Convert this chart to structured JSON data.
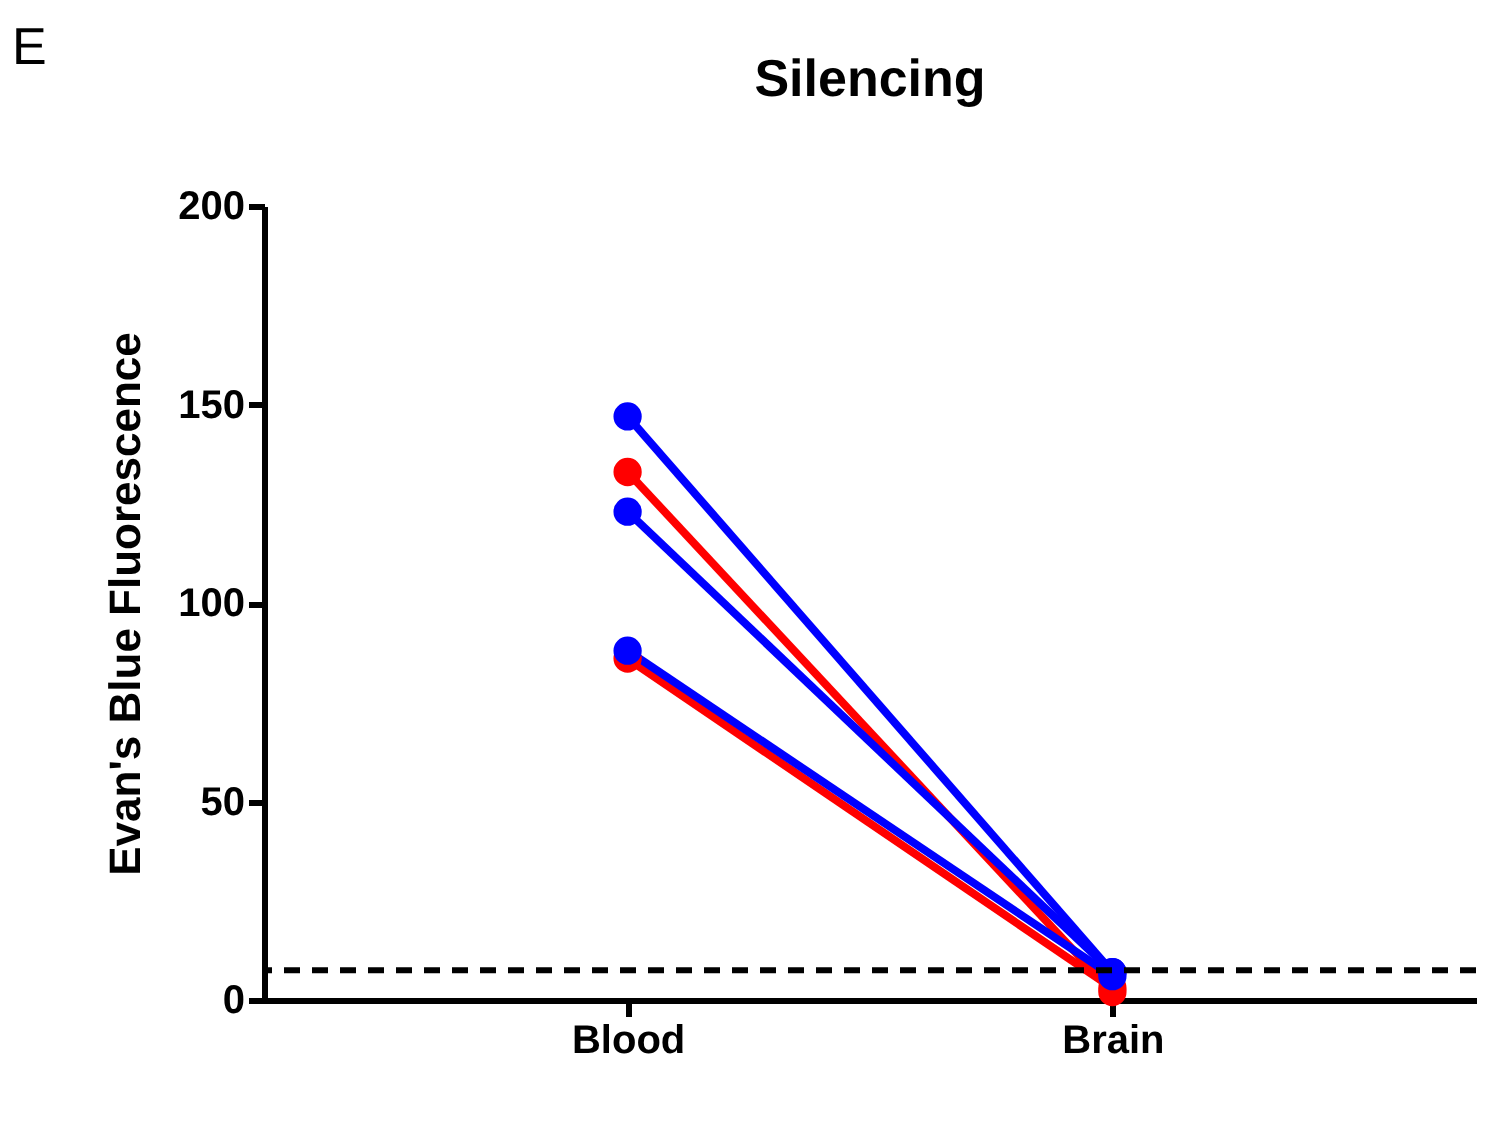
{
  "chart_data": {
    "type": "line",
    "title": "Silencing",
    "ylabel": "Evan's Blue Fluorescence",
    "annotations": [
      "E"
    ],
    "categories": [
      "Blood",
      "Brain"
    ],
    "series": [
      {
        "color": "#0000ff",
        "values": [
          147,
          7
        ]
      },
      {
        "color": "#ff0000",
        "values": [
          133,
          2
        ]
      },
      {
        "color": "#0000ff",
        "values": [
          123,
          7
        ]
      },
      {
        "color": "#ff0000",
        "values": [
          86,
          3
        ]
      },
      {
        "color": "#0000ff",
        "values": [
          88,
          6
        ]
      }
    ],
    "ylim": [
      0,
      200
    ],
    "yticks": [
      0,
      50,
      100,
      150,
      200
    ],
    "grid": false,
    "legend": false,
    "marker": "circle",
    "line_style": "solid",
    "ref_lines": [
      {
        "axis": "y",
        "value": 7.5,
        "color": "#000000",
        "line_style": "dashed"
      }
    ]
  }
}
